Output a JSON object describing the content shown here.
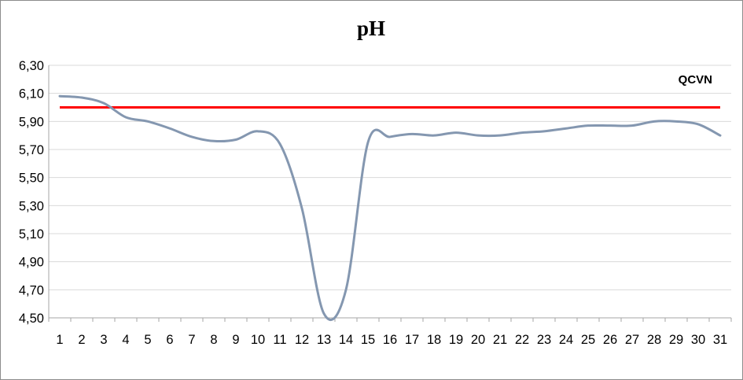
{
  "chart_data": {
    "type": "line",
    "title": "pH",
    "xlabel": "",
    "ylabel": "",
    "categories": [
      "1",
      "2",
      "3",
      "4",
      "5",
      "6",
      "7",
      "8",
      "9",
      "10",
      "11",
      "12",
      "13",
      "14",
      "15",
      "16",
      "17",
      "18",
      "19",
      "20",
      "21",
      "22",
      "23",
      "24",
      "25",
      "26",
      "27",
      "28",
      "29",
      "30",
      "31"
    ],
    "ylim": [
      4.5,
      6.3
    ],
    "yticks": [
      "4,50",
      "4,70",
      "4,90",
      "5,10",
      "5,30",
      "5,50",
      "5,70",
      "5,90",
      "6,10",
      "6,30"
    ],
    "grid": true,
    "series": [
      {
        "name": "",
        "color": "#8497b0",
        "smooth": true,
        "values": [
          6.08,
          6.07,
          6.03,
          5.93,
          5.9,
          5.85,
          5.79,
          5.76,
          5.77,
          5.83,
          5.74,
          5.28,
          4.53,
          4.7,
          5.75,
          5.79,
          5.81,
          5.8,
          5.82,
          5.8,
          5.8,
          5.82,
          5.83,
          5.85,
          5.87,
          5.87,
          5.87,
          5.9,
          5.9,
          5.88,
          5.8
        ]
      }
    ],
    "reference_line": {
      "name": "QCVN",
      "value": 6.0,
      "color": "#ff0000"
    },
    "legend_position": "top-right"
  }
}
